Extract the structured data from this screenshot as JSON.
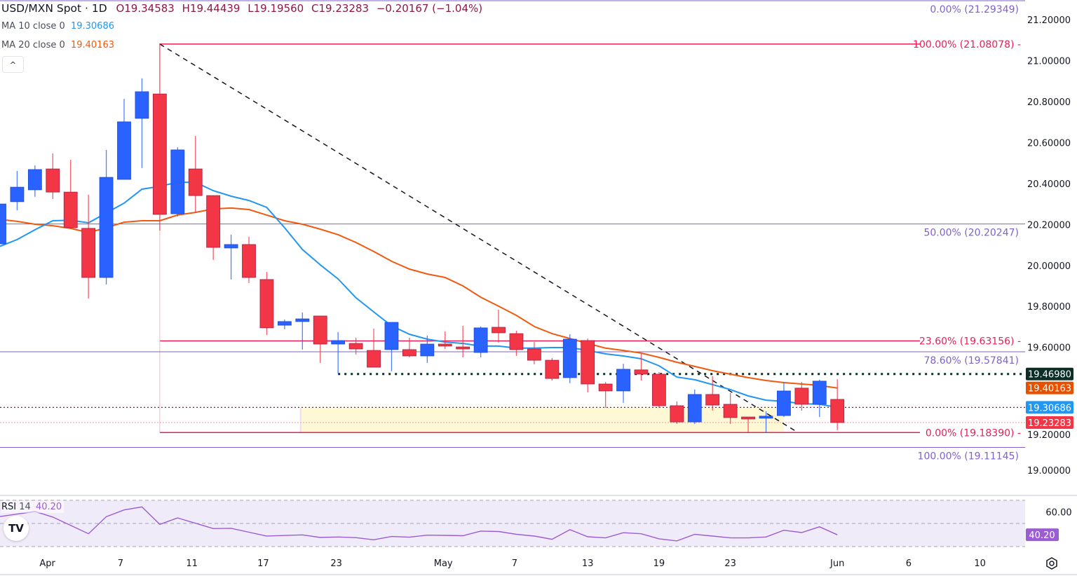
{
  "header": {
    "symbol": "USD/MXN Spot · 1D",
    "open": "O19.34583",
    "high": "H19.44439",
    "low": "L19.19560",
    "close": "C19.23283",
    "change": "−0.20167 (−1.04%)"
  },
  "indicators": {
    "ma10": {
      "label": "MA 10 close 0",
      "value": "19.30686",
      "color": "#2196f3"
    },
    "ma20": {
      "label": "MA 20 close 0",
      "value": "19.40163",
      "color": "#f05a0f"
    },
    "rsi": {
      "label": "RSI",
      "period": "14",
      "value": "40.20",
      "color": "#9c5cd4"
    }
  },
  "colors": {
    "up": "#2962ff",
    "down": "#f23645",
    "fib_red": "#e91e57",
    "fib_purple": "#8160d0",
    "rsi_band": "#f0ebf8"
  },
  "price_axis": {
    "ticks": [
      "21.20000",
      "21.00000",
      "20.80000",
      "20.60000",
      "20.40000",
      "20.20000",
      "20.00000",
      "19.80000",
      "19.60000",
      "19.20000",
      "19.00000"
    ],
    "tick_values": [
      21.2,
      21.0,
      20.8,
      20.6,
      20.4,
      20.2,
      20.0,
      19.8,
      19.6,
      19.2,
      19.0
    ],
    "badges": [
      {
        "label": "19.46980",
        "value": 19.4698,
        "color": "#0b2e26"
      },
      {
        "label": "19.40163",
        "value": 19.40163,
        "color": "#e65100"
      },
      {
        "label": "19.30686",
        "value": 19.30686,
        "color": "#2196f3"
      },
      {
        "label": "19.23283",
        "value": 19.23283,
        "color": "#f23645"
      }
    ]
  },
  "rsi_axis": {
    "ticks": [
      "60.00"
    ],
    "tick_values": [
      60
    ],
    "badge": "40.20",
    "badge_value": 40.2,
    "bands": [
      70,
      50,
      30
    ]
  },
  "time_axis": {
    "labels": [
      {
        "text": "Apr",
        "bar": 2.7
      },
      {
        "text": "7",
        "bar": 6.8
      },
      {
        "text": "11",
        "bar": 10.8
      },
      {
        "text": "17",
        "bar": 14.8
      },
      {
        "text": "23",
        "bar": 18.9
      },
      {
        "text": "May",
        "bar": 24.9
      },
      {
        "text": "7",
        "bar": 28.9
      },
      {
        "text": "13",
        "bar": 33
      },
      {
        "text": "19",
        "bar": 37
      },
      {
        "text": "23",
        "bar": 41
      },
      {
        "text": "Jun",
        "bar": 47
      },
      {
        "text": "6",
        "bar": 51
      },
      {
        "text": "10",
        "bar": 55
      }
    ]
  },
  "fib_red": [
    {
      "label": "100.00% (21.08078)",
      "value": 21.08078
    },
    {
      "label": "23.60% (19.63156)",
      "value": 19.63156
    },
    {
      "label": "0.00% (19.18390)",
      "value": 19.1839
    }
  ],
  "fib_purple": [
    {
      "label": "0.00% (21.29349)",
      "value": 21.29349
    },
    {
      "label": "50.00% (20.20247)",
      "value": 20.20247
    },
    {
      "label": "78.60% (19.57841)",
      "value": 19.57841
    },
    {
      "label": "100.00% (19.11145)",
      "value": 19.11145
    }
  ],
  "chart_data": {
    "type": "candlestick",
    "title": "USD/MXN Spot · 1D",
    "ohlc": [
      [
        20.105,
        20.314,
        20.098,
        20.3
      ],
      [
        20.311,
        20.461,
        20.269,
        20.382
      ],
      [
        20.369,
        20.488,
        20.335,
        20.468
      ],
      [
        20.471,
        20.547,
        20.324,
        20.358
      ],
      [
        20.358,
        20.516,
        20.18,
        20.184
      ],
      [
        20.181,
        20.345,
        19.838,
        19.941
      ],
      [
        19.941,
        20.564,
        19.907,
        20.43
      ],
      [
        20.42,
        20.813,
        20.42,
        20.701
      ],
      [
        20.718,
        20.913,
        20.475,
        20.848
      ],
      [
        20.837,
        21.084,
        20.17,
        20.249
      ],
      [
        20.252,
        20.577,
        20.239,
        20.564
      ],
      [
        20.471,
        20.632,
        20.256,
        20.341
      ],
      [
        20.341,
        20.341,
        20.027,
        20.088
      ],
      [
        20.085,
        20.15,
        19.931,
        20.102
      ],
      [
        20.102,
        20.14,
        19.914,
        19.941
      ],
      [
        19.931,
        19.968,
        19.66,
        19.695
      ],
      [
        19.708,
        19.736,
        19.688,
        19.726
      ],
      [
        19.726,
        19.77,
        19.589,
        19.739
      ],
      [
        19.753,
        19.753,
        19.524,
        19.616
      ],
      [
        19.616,
        19.674,
        19.472,
        19.633
      ],
      [
        19.619,
        19.647,
        19.565,
        19.592
      ],
      [
        19.585,
        19.691,
        19.503,
        19.503
      ],
      [
        19.589,
        19.722,
        19.483,
        19.722
      ],
      [
        19.589,
        19.647,
        19.551,
        19.558
      ],
      [
        19.558,
        19.657,
        19.524,
        19.616
      ],
      [
        19.616,
        19.678,
        19.592,
        19.606
      ],
      [
        19.602,
        19.705,
        19.551,
        19.592
      ],
      [
        19.575,
        19.702,
        19.551,
        19.695
      ],
      [
        19.698,
        19.784,
        19.623,
        19.671
      ],
      [
        19.667,
        19.681,
        19.558,
        19.589
      ],
      [
        19.592,
        19.626,
        19.517,
        19.537
      ],
      [
        19.537,
        19.548,
        19.438,
        19.448
      ],
      [
        19.452,
        19.664,
        19.425,
        19.64
      ],
      [
        19.633,
        19.643,
        19.38,
        19.421
      ],
      [
        19.421,
        19.431,
        19.305,
        19.387
      ],
      [
        19.387,
        19.52,
        19.329,
        19.493
      ],
      [
        19.49,
        19.568,
        19.438,
        19.469
      ],
      [
        19.469,
        19.479,
        19.305,
        19.315
      ],
      [
        19.315,
        19.336,
        19.226,
        19.236
      ],
      [
        19.236,
        19.394,
        19.226,
        19.37
      ],
      [
        19.37,
        19.459,
        19.291,
        19.318
      ],
      [
        19.322,
        19.377,
        19.226,
        19.257
      ],
      [
        19.26,
        19.26,
        19.185,
        19.25
      ],
      [
        19.254,
        19.288,
        19.185,
        19.264
      ],
      [
        19.267,
        19.428,
        19.26,
        19.387
      ],
      [
        19.401,
        19.431,
        19.291,
        19.322
      ],
      [
        19.322,
        19.442,
        19.26,
        19.435
      ],
      [
        19.34583,
        19.44439,
        19.1956,
        19.23283
      ]
    ],
    "ma10": [
      20.092,
      20.126,
      20.174,
      20.218,
      20.221,
      20.208,
      20.256,
      20.304,
      20.372,
      20.386,
      20.406,
      20.406,
      20.365,
      20.338,
      20.317,
      20.283,
      20.184,
      20.078,
      20.003,
      19.934,
      19.842,
      19.773,
      19.705,
      19.664,
      19.64,
      19.626,
      19.619,
      19.606,
      19.606,
      19.596,
      19.596,
      19.599,
      19.599,
      19.585,
      19.568,
      19.558,
      19.544,
      19.51,
      19.455,
      19.442,
      19.418,
      19.394,
      19.363,
      19.342,
      19.336,
      19.325,
      19.322,
      19.30686
    ],
    "ma20": [
      20.225,
      20.215,
      20.201,
      20.194,
      20.181,
      20.16,
      20.184,
      20.211,
      20.218,
      20.218,
      20.246,
      20.259,
      20.276,
      20.28,
      20.273,
      20.246,
      20.218,
      20.201,
      20.177,
      20.15,
      20.112,
      20.068,
      20.02,
      19.982,
      19.958,
      19.941,
      19.9,
      19.845,
      19.801,
      19.756,
      19.702,
      19.667,
      19.643,
      19.619,
      19.596,
      19.585,
      19.572,
      19.551,
      19.527,
      19.507,
      19.486,
      19.469,
      19.452,
      19.438,
      19.428,
      19.421,
      19.414,
      19.40163
    ],
    "rsi": [
      55.9,
      58.1,
      60.3,
      55.5,
      48.3,
      41.1,
      55.9,
      61.7,
      64.3,
      49.2,
      54.8,
      50.2,
      45.6,
      45.8,
      42.4,
      39.1,
      39.6,
      40.1,
      37.9,
      38.3,
      37.7,
      35.9,
      38.7,
      38.1,
      39.9,
      39.7,
      39.4,
      43.4,
      43.0,
      40.6,
      39.1,
      36.3,
      44.6,
      38.5,
      37.5,
      42.0,
      41.1,
      36.7,
      34.9,
      40.6,
      39.1,
      37.5,
      37.5,
      38.3,
      44.1,
      42.1,
      47.1,
      40.2
    ],
    "trendline": {
      "from": {
        "bar": 9,
        "price": 21.08078
      },
      "to": {
        "bar": 44.8,
        "price": 19.1839
      }
    },
    "support_dotted": {
      "from_bar": 19,
      "price": 19.4698
    },
    "zone": {
      "from_bar": 16.9,
      "to_bar": 44,
      "top": 19.30686,
      "bottom": 19.1839
    },
    "ylim": [
      19.0,
      21.2
    ]
  }
}
